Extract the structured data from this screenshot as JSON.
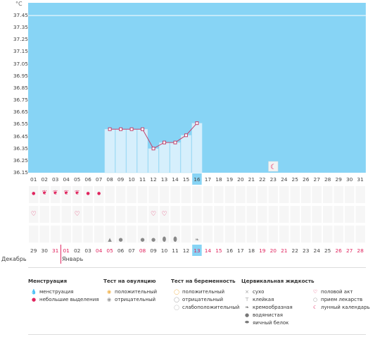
{
  "unit": "°C",
  "y_ticks": [
    "37.45",
    "37.35",
    "37.25",
    "37.15",
    "37.05",
    "36.95",
    "36.85",
    "36.75",
    "36.65",
    "36.55",
    "36.45",
    "36.35",
    "36.25",
    "36.15"
  ],
  "cycle_days": [
    "01",
    "02",
    "03",
    "04",
    "05",
    "06",
    "07",
    "08",
    "09",
    "10",
    "11",
    "12",
    "13",
    "14",
    "15",
    "16",
    "17",
    "18",
    "19",
    "20",
    "21",
    "22",
    "23",
    "24",
    "25",
    "26",
    "27",
    "28",
    "29",
    "30",
    "31"
  ],
  "current_cycle_day": "16",
  "calendar_days": [
    "29",
    "30",
    "31",
    "01",
    "02",
    "03",
    "04",
    "05",
    "06",
    "07",
    "08",
    "09",
    "10",
    "11",
    "12",
    "13",
    "14",
    "15",
    "16",
    "17",
    "18",
    "19",
    "20",
    "21",
    "22",
    "23",
    "24",
    "25",
    "26",
    "27",
    "28"
  ],
  "calendar_days_red": [
    2,
    3,
    6,
    7,
    10,
    15,
    16,
    17,
    21,
    22,
    23,
    28,
    29,
    30
  ],
  "current_calendar_day": "13",
  "month_prev": "Декабрь",
  "month_next": "Январь",
  "chart_data": {
    "type": "line",
    "y_range": [
      36.15,
      37.45
    ],
    "temperatures": [
      {
        "day": "08",
        "value": 36.51
      },
      {
        "day": "09",
        "value": 36.51
      },
      {
        "day": "10",
        "value": 36.51
      },
      {
        "day": "11",
        "value": 36.51
      },
      {
        "day": "12",
        "value": 36.35
      },
      {
        "day": "13",
        "value": 36.4
      },
      {
        "day": "14",
        "value": 36.4
      },
      {
        "day": "15",
        "value": 36.46
      },
      {
        "day": "16",
        "value": 36.56
      }
    ],
    "moon_marker_day": "23"
  },
  "rows": {
    "menstruation": {
      "01": "small",
      "02": "full",
      "03": "full",
      "04": "full",
      "05": "full",
      "06": "small",
      "07": "small"
    },
    "sex": [
      "01",
      "05",
      "12",
      "13"
    ],
    "fluid": {
      "08": "drop",
      "09": "drop-small",
      "11": "drop-small",
      "12": "drop-small",
      "13": "egg",
      "14": "egg",
      "16": "cream"
    }
  },
  "legend": {
    "menstruation": {
      "title": "Менструация",
      "items": [
        "менструация",
        "небольшие выделения"
      ]
    },
    "ovulation": {
      "title": "Тест на овуляцию",
      "items": [
        "положительный",
        "отрицательный"
      ]
    },
    "pregnancy": {
      "title": "Тест на беременность",
      "items": [
        "положительный",
        "отрицательный",
        "слабоположительный"
      ]
    },
    "cervical": {
      "title": "Цервикальная жидкость",
      "items": [
        "сухо",
        "клейкая",
        "кремообразная",
        "водянистая",
        "яичный белок"
      ]
    },
    "other": {
      "items": [
        "половой акт",
        "прием лекарств",
        "лунный календарь"
      ]
    }
  },
  "colors": {
    "chart_bg": "#87d4f5",
    "bar": "#d6effc",
    "line": "#c0446e",
    "highlight": "#87d4f5",
    "red": "#e0245e"
  }
}
